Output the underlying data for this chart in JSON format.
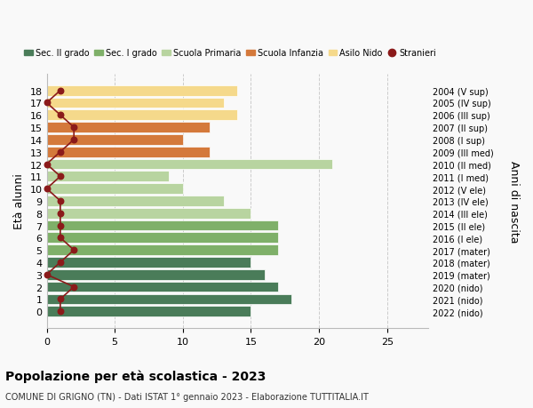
{
  "ages": [
    18,
    17,
    16,
    15,
    14,
    13,
    12,
    11,
    10,
    9,
    8,
    7,
    6,
    5,
    4,
    3,
    2,
    1,
    0
  ],
  "right_labels": [
    "2004 (V sup)",
    "2005 (IV sup)",
    "2006 (III sup)",
    "2007 (II sup)",
    "2008 (I sup)",
    "2009 (III med)",
    "2010 (II med)",
    "2011 (I med)",
    "2012 (V ele)",
    "2013 (IV ele)",
    "2014 (III ele)",
    "2015 (II ele)",
    "2016 (I ele)",
    "2017 (mater)",
    "2018 (mater)",
    "2019 (mater)",
    "2020 (nido)",
    "2021 (nido)",
    "2022 (nido)"
  ],
  "bar_values": [
    15,
    18,
    17,
    16,
    15,
    17,
    17,
    17,
    15,
    13,
    10,
    9,
    21,
    12,
    10,
    12,
    14,
    13,
    14
  ],
  "bar_colors": [
    "#4a7c59",
    "#4a7c59",
    "#4a7c59",
    "#4a7c59",
    "#4a7c59",
    "#7fb069",
    "#7fb069",
    "#7fb069",
    "#b8d4a0",
    "#b8d4a0",
    "#b8d4a0",
    "#b8d4a0",
    "#b8d4a0",
    "#d4793b",
    "#d4793b",
    "#d4793b",
    "#f5d98b",
    "#f5d98b",
    "#f5d98b"
  ],
  "stranieri_values": [
    1,
    1,
    2,
    0,
    1,
    2,
    1,
    1,
    1,
    1,
    0,
    1,
    0,
    1,
    2,
    2,
    1,
    0,
    1
  ],
  "legend_labels": [
    "Sec. II grado",
    "Sec. I grado",
    "Scuola Primaria",
    "Scuola Infanzia",
    "Asilo Nido",
    "Stranieri"
  ],
  "legend_colors": [
    "#4a7c59",
    "#7fb069",
    "#b8d4a0",
    "#d4793b",
    "#f5d98b",
    "#8b1a1a"
  ],
  "ylabel": "Età alunni",
  "ylabel_right": "Anni di nascita",
  "title": "Popolazione per età scolastica - 2023",
  "subtitle": "COMUNE DI GRIGNO (TN) - Dati ISTAT 1° gennaio 2023 - Elaborazione TUTTITALIA.IT",
  "xlim": [
    0,
    28
  ],
  "background_color": "#f9f9f9",
  "plot_bg_color": "#f9f9f9"
}
